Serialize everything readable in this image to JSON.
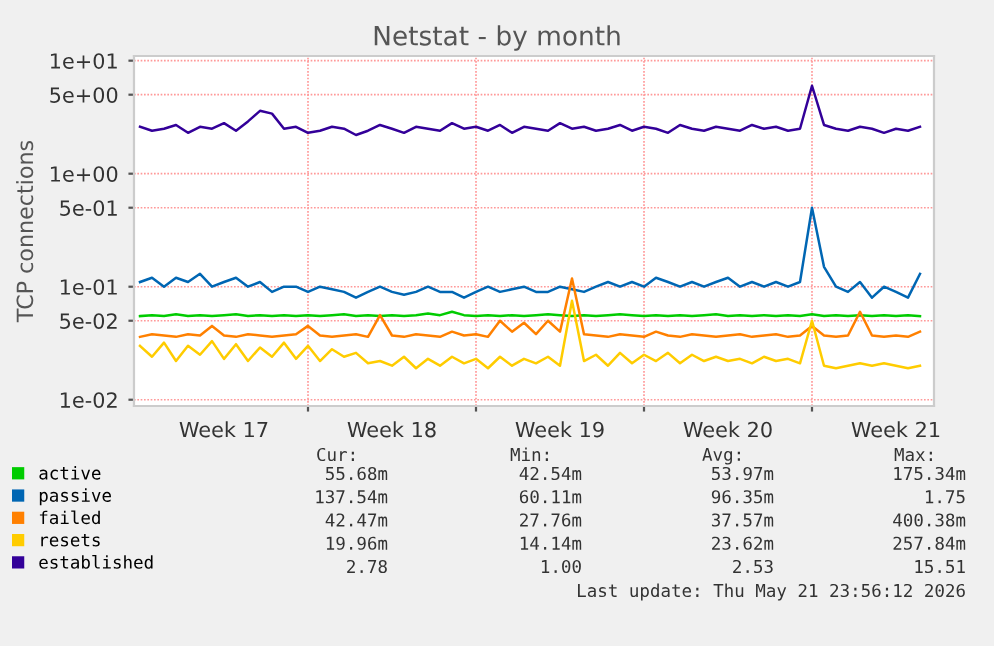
{
  "chart_data": {
    "type": "line",
    "title": "Netstat - by month",
    "ylabel": "TCP connections",
    "log": true,
    "grid": true,
    "legend": "bottom left",
    "marker": "none",
    "line_style": "solid",
    "xlim": [
      "2026-04-19T18:00",
      "2026-05-23T02:00"
    ],
    "xticks": [
      {
        "value": "2026-04-23T12:00",
        "label": "Week 17"
      },
      {
        "value": "2026-04-27T00:00",
        "label": null
      },
      {
        "value": "2026-04-30T12:00",
        "label": "Week 18"
      },
      {
        "value": "2026-05-04T00:00",
        "label": null
      },
      {
        "value": "2026-05-07T12:00",
        "label": "Week 19"
      },
      {
        "value": "2026-05-11T00:00",
        "label": null
      },
      {
        "value": "2026-05-14T12:00",
        "label": "Week 20"
      },
      {
        "value": "2026-05-18T00:00",
        "label": null
      },
      {
        "value": "2026-05-21T12:00",
        "label": "Week 21"
      }
    ],
    "ylim": [
      0.0088,
      11
    ],
    "yticks": [
      {
        "value": 10,
        "label": "1e+01"
      },
      {
        "value": 5,
        "label": "5e+00"
      },
      {
        "value": 1,
        "label": "1e+00"
      },
      {
        "value": 0.5,
        "label": "5e-01"
      },
      {
        "value": 0.1,
        "label": "1e-01"
      },
      {
        "value": 0.05,
        "label": "5e-02"
      },
      {
        "value": 0.01,
        "label": "1e-02"
      }
    ],
    "x": [
      "2026-04-20T00:00",
      "2026-04-20T12:00",
      "2026-04-21T00:00",
      "2026-04-21T12:00",
      "2026-04-22T00:00",
      "2026-04-22T12:00",
      "2026-04-23T00:00",
      "2026-04-23T12:00",
      "2026-04-24T00:00",
      "2026-04-24T12:00",
      "2026-04-25T00:00",
      "2026-04-25T12:00",
      "2026-04-26T00:00",
      "2026-04-26T12:00",
      "2026-04-27T00:00",
      "2026-04-27T12:00",
      "2026-04-28T00:00",
      "2026-04-28T12:00",
      "2026-04-29T00:00",
      "2026-04-29T12:00",
      "2026-04-30T00:00",
      "2026-04-30T12:00",
      "2026-05-01T00:00",
      "2026-05-01T12:00",
      "2026-05-02T00:00",
      "2026-05-02T12:00",
      "2026-05-03T00:00",
      "2026-05-03T12:00",
      "2026-05-04T00:00",
      "2026-05-04T12:00",
      "2026-05-05T00:00",
      "2026-05-05T12:00",
      "2026-05-06T00:00",
      "2026-05-06T12:00",
      "2026-05-07T00:00",
      "2026-05-07T12:00",
      "2026-05-08T00:00",
      "2026-05-08T12:00",
      "2026-05-09T00:00",
      "2026-05-09T12:00",
      "2026-05-10T00:00",
      "2026-05-10T12:00",
      "2026-05-11T00:00",
      "2026-05-11T12:00",
      "2026-05-12T00:00",
      "2026-05-12T12:00",
      "2026-05-13T00:00",
      "2026-05-13T12:00",
      "2026-05-14T00:00",
      "2026-05-14T12:00",
      "2026-05-15T00:00",
      "2026-05-15T12:00",
      "2026-05-16T00:00",
      "2026-05-16T12:00",
      "2026-05-17T00:00",
      "2026-05-17T12:00",
      "2026-05-18T00:00",
      "2026-05-18T12:00",
      "2026-05-19T00:00",
      "2026-05-19T12:00",
      "2026-05-20T00:00",
      "2026-05-20T12:00",
      "2026-05-21T00:00",
      "2026-05-21T12:00",
      "2026-05-22T00:00",
      "2026-05-22T12:00"
    ],
    "series": [
      {
        "name": "active",
        "color": "#00cc00",
        "values": [
          0.055,
          0.056,
          0.055,
          0.057,
          0.055,
          0.056,
          0.055,
          0.056,
          0.057,
          0.055,
          0.056,
          0.055,
          0.056,
          0.055,
          0.056,
          0.055,
          0.056,
          0.057,
          0.055,
          0.056,
          0.055,
          0.056,
          0.055,
          0.056,
          0.058,
          0.056,
          0.06,
          0.056,
          0.055,
          0.056,
          0.055,
          0.056,
          0.055,
          0.056,
          0.057,
          0.056,
          0.055,
          0.056,
          0.055,
          0.056,
          0.057,
          0.056,
          0.055,
          0.056,
          0.055,
          0.056,
          0.055,
          0.056,
          0.057,
          0.055,
          0.056,
          0.055,
          0.056,
          0.055,
          0.056,
          0.055,
          0.057,
          0.055,
          0.056,
          0.055,
          0.056,
          0.055,
          0.056,
          0.055,
          0.056,
          0.055
        ]
      },
      {
        "name": "passive",
        "color": "#0066b3",
        "values": [
          0.11,
          0.12,
          0.1,
          0.12,
          0.11,
          0.13,
          0.1,
          0.11,
          0.12,
          0.1,
          0.11,
          0.09,
          0.1,
          0.1,
          0.09,
          0.1,
          0.095,
          0.09,
          0.08,
          0.09,
          0.1,
          0.09,
          0.085,
          0.09,
          0.1,
          0.09,
          0.09,
          0.08,
          0.09,
          0.1,
          0.09,
          0.095,
          0.1,
          0.09,
          0.09,
          0.1,
          0.095,
          0.09,
          0.1,
          0.11,
          0.1,
          0.11,
          0.1,
          0.12,
          0.11,
          0.1,
          0.11,
          0.1,
          0.11,
          0.12,
          0.1,
          0.11,
          0.1,
          0.11,
          0.1,
          0.11,
          0.5,
          0.15,
          0.1,
          0.09,
          0.11,
          0.08,
          0.1,
          0.09,
          0.08,
          0.13
        ]
      },
      {
        "name": "failed",
        "color": "#ff8000",
        "values": [
          0.036,
          0.038,
          0.037,
          0.036,
          0.038,
          0.037,
          0.045,
          0.037,
          0.036,
          0.038,
          0.037,
          0.036,
          0.037,
          0.038,
          0.045,
          0.037,
          0.036,
          0.037,
          0.038,
          0.036,
          0.056,
          0.037,
          0.036,
          0.038,
          0.037,
          0.036,
          0.04,
          0.037,
          0.038,
          0.036,
          0.05,
          0.04,
          0.048,
          0.038,
          0.05,
          0.04,
          0.118,
          0.038,
          0.037,
          0.036,
          0.038,
          0.037,
          0.036,
          0.04,
          0.037,
          0.036,
          0.038,
          0.037,
          0.036,
          0.037,
          0.038,
          0.036,
          0.037,
          0.038,
          0.036,
          0.037,
          0.045,
          0.037,
          0.036,
          0.037,
          0.06,
          0.037,
          0.036,
          0.037,
          0.036,
          0.04
        ]
      },
      {
        "name": "resets",
        "color": "#ffcc00",
        "values": [
          0.03,
          0.024,
          0.032,
          0.022,
          0.03,
          0.025,
          0.033,
          0.023,
          0.031,
          0.022,
          0.029,
          0.024,
          0.032,
          0.023,
          0.03,
          0.022,
          0.028,
          0.024,
          0.026,
          0.021,
          0.022,
          0.02,
          0.024,
          0.019,
          0.023,
          0.02,
          0.024,
          0.021,
          0.023,
          0.019,
          0.024,
          0.02,
          0.023,
          0.021,
          0.024,
          0.02,
          0.075,
          0.022,
          0.025,
          0.02,
          0.026,
          0.021,
          0.025,
          0.022,
          0.026,
          0.021,
          0.025,
          0.022,
          0.024,
          0.022,
          0.023,
          0.021,
          0.024,
          0.022,
          0.023,
          0.021,
          0.05,
          0.02,
          0.019,
          0.02,
          0.021,
          0.02,
          0.021,
          0.02,
          0.019,
          0.02
        ]
      },
      {
        "name": "established",
        "color": "#330099",
        "values": [
          2.6,
          2.4,
          2.5,
          2.7,
          2.3,
          2.6,
          2.5,
          2.8,
          2.4,
          2.9,
          3.6,
          3.4,
          2.5,
          2.6,
          2.3,
          2.4,
          2.6,
          2.5,
          2.2,
          2.4,
          2.7,
          2.5,
          2.3,
          2.6,
          2.5,
          2.4,
          2.8,
          2.5,
          2.6,
          2.4,
          2.7,
          2.3,
          2.6,
          2.5,
          2.4,
          2.8,
          2.5,
          2.6,
          2.4,
          2.5,
          2.7,
          2.4,
          2.6,
          2.5,
          2.3,
          2.7,
          2.5,
          2.4,
          2.6,
          2.5,
          2.4,
          2.7,
          2.5,
          2.6,
          2.4,
          2.5,
          6.0,
          2.7,
          2.5,
          2.4,
          2.6,
          2.5,
          2.3,
          2.5,
          2.4,
          2.6
        ]
      }
    ],
    "annotations": [
      "Cur:",
      "Min:",
      "Avg:",
      "Max:",
      "55.68m",
      "42.54m",
      "53.97m",
      "175.34m",
      "137.54m",
      "60.11m",
      "96.35m",
      "1.75",
      "42.47m",
      "27.76m",
      "37.57m",
      "400.38m",
      "19.96m",
      "14.14m",
      "23.62m",
      "257.84m",
      "2.78",
      "1.00",
      "2.53",
      "15.51",
      "Last update: Thu May 21 23:56:12 2026"
    ]
  }
}
